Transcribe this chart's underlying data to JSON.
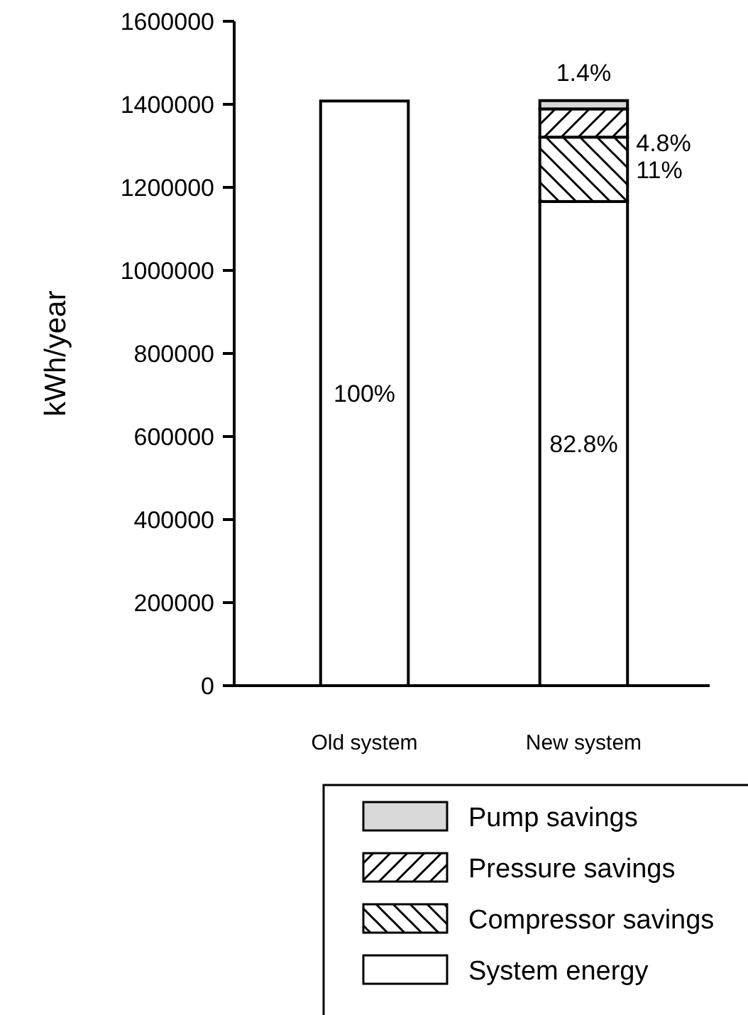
{
  "chart_data": {
    "type": "bar",
    "ylabel": "kWh/year",
    "categories": [
      "Old system",
      "New system"
    ],
    "stacked": true,
    "ylim": [
      0,
      1600000
    ],
    "yticks": [
      0,
      200000,
      400000,
      600000,
      800000,
      1000000,
      1200000,
      1400000,
      1600000
    ],
    "legend": "bottom",
    "grid": false,
    "series": [
      {
        "name": "System energy",
        "color": "#ffffff",
        "values": [
          1408000,
          1166000
        ]
      },
      {
        "name": "Compressor savings",
        "color": "#000000",
        "values": [
          null,
          155000
        ]
      },
      {
        "name": "Pressure savings",
        "color": "#000000",
        "values": [
          null,
          68000
        ]
      },
      {
        "name": "Pump savings",
        "color": "#d9d9d9",
        "values": [
          null,
          20000
        ]
      }
    ],
    "annotations": [
      "100%",
      "82.8%",
      {
        "text": "11%",
        "x": "New system",
        "y": 1321000
      },
      {
        "text": "4.8%",
        "x": "New system",
        "y": 1389000
      },
      {
        "text": "1.4%",
        "x": "New system",
        "y": 1409000
      }
    ]
  }
}
